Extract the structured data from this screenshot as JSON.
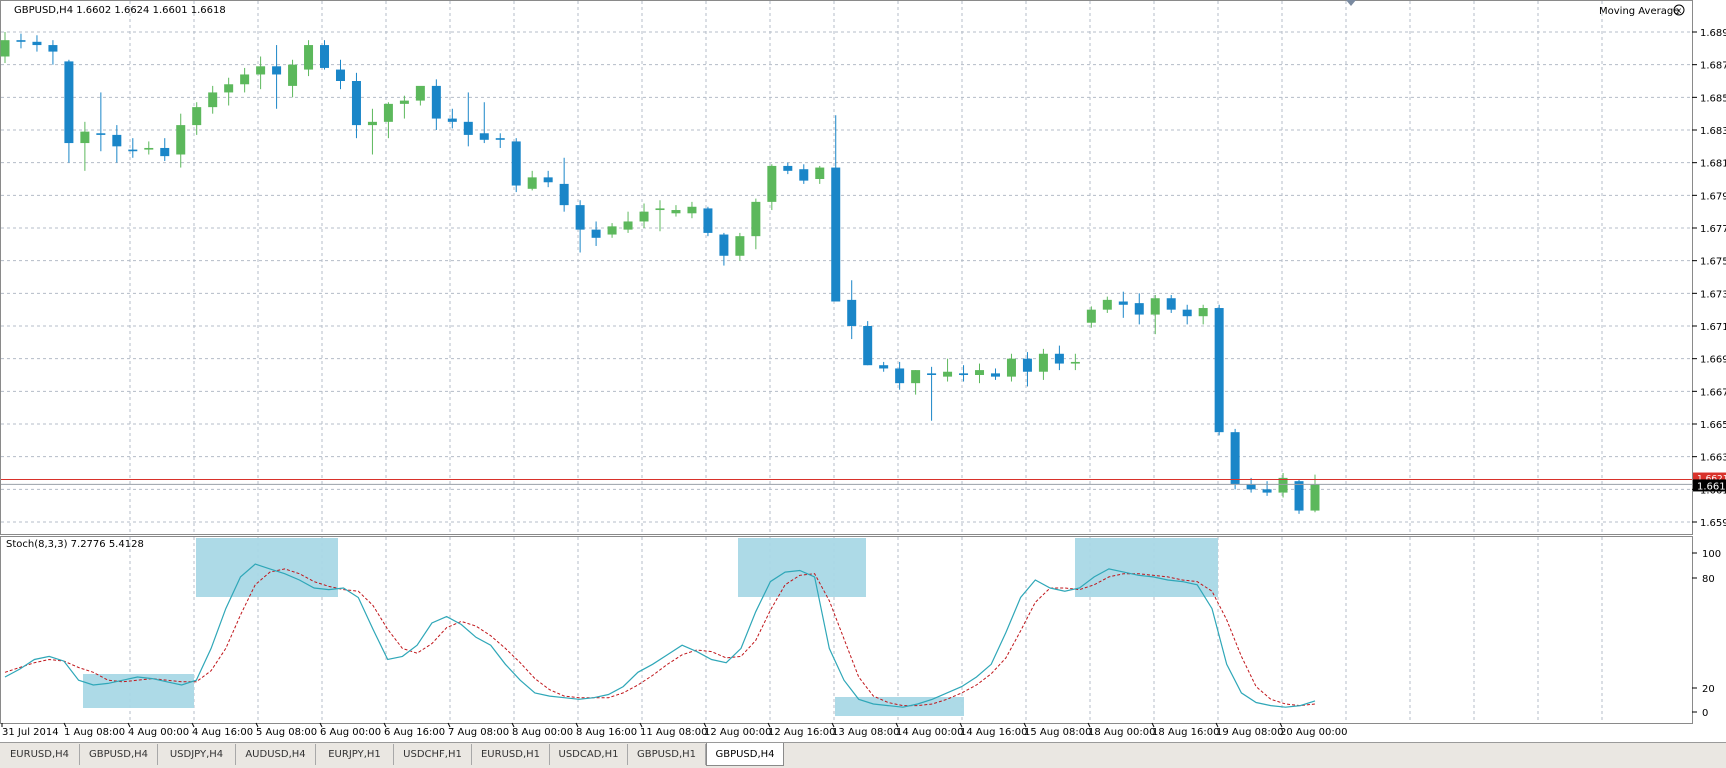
{
  "window": {
    "symbol_header": "GBPUSD,H4  1.6602 1.6624 1.6601 1.6618",
    "indicator_label": "Moving Average",
    "sub_header": "Stoch(8,3,3) 7.2776 5.4128"
  },
  "colors": {
    "bull": "#5cb85c",
    "bear": "#1a86c8",
    "grid": "#b4bcc8",
    "price_line": "#d9322b",
    "stoch_main": "#2fa7b8",
    "stoch_signal": "#c0161b",
    "zone": "#a9d8e6"
  },
  "price_axis": {
    "ticks": [
      "1.6895",
      "1.6875",
      "1.6855",
      "1.6835",
      "1.6815",
      "1.6795",
      "1.6775",
      "1.6755",
      "1.6735",
      "1.6715",
      "1.6695",
      "1.6675",
      "1.6655",
      "1.6635",
      "1.6615",
      "1.6595"
    ],
    "current_label": "1.6618",
    "red_label": "1.6621",
    "red_value": 1.6621,
    "current_value": 1.6618,
    "min": 1.6589,
    "max": 1.6906
  },
  "stoch_axis": {
    "ticks": [
      "100",
      "80",
      "20",
      "0"
    ]
  },
  "time_labels": [
    "31 Jul 2014",
    "1 Aug 08:00",
    "4 Aug 00:00",
    "4 Aug 16:00",
    "5 Aug 08:00",
    "6 Aug 00:00",
    "6 Aug 16:00",
    "7 Aug 08:00",
    "8 Aug 00:00",
    "8 Aug 16:00",
    "11 Aug 08:00",
    "12 Aug 00:00",
    "12 Aug 16:00",
    "13 Aug 08:00",
    "14 Aug 00:00",
    "14 Aug 16:00",
    "15 Aug 08:00",
    "18 Aug 00:00",
    "18 Aug 16:00",
    "19 Aug 08:00",
    "20 Aug 00:00"
  ],
  "tabs": [
    {
      "label": "EURUSD,H4",
      "active": false
    },
    {
      "label": "GBPUSD,H4",
      "active": false
    },
    {
      "label": "USDJPY,H4",
      "active": false
    },
    {
      "label": "AUDUSD,H4",
      "active": false
    },
    {
      "label": "EURJPY,H1",
      "active": false
    },
    {
      "label": "USDCHF,H1",
      "active": false
    },
    {
      "label": "EURUSD,H1",
      "active": false
    },
    {
      "label": "USDCAD,H1",
      "active": false
    },
    {
      "label": "GBPUSD,H1",
      "active": false
    },
    {
      "label": "GBPUSD,H4",
      "active": true
    }
  ],
  "chart_data": {
    "type": "candlestick",
    "candles": [
      {
        "o": 1.688,
        "h": 1.6895,
        "l": 1.6876,
        "c": 1.689
      },
      {
        "o": 1.689,
        "h": 1.6894,
        "l": 1.6885,
        "c": 1.6889
      },
      {
        "o": 1.6889,
        "h": 1.6893,
        "l": 1.6883,
        "c": 1.6887
      },
      {
        "o": 1.6887,
        "h": 1.689,
        "l": 1.6875,
        "c": 1.6883
      },
      {
        "o": 1.6877,
        "h": 1.6878,
        "l": 1.6815,
        "c": 1.6827
      },
      {
        "o": 1.6827,
        "h": 1.684,
        "l": 1.681,
        "c": 1.6834
      },
      {
        "o": 1.6833,
        "h": 1.6858,
        "l": 1.6822,
        "c": 1.6832
      },
      {
        "o": 1.6832,
        "h": 1.6838,
        "l": 1.6815,
        "c": 1.6825
      },
      {
        "o": 1.6823,
        "h": 1.683,
        "l": 1.6818,
        "c": 1.6822
      },
      {
        "o": 1.6823,
        "h": 1.6828,
        "l": 1.682,
        "c": 1.6824
      },
      {
        "o": 1.6824,
        "h": 1.683,
        "l": 1.6816,
        "c": 1.6819
      },
      {
        "o": 1.682,
        "h": 1.6845,
        "l": 1.6812,
        "c": 1.6838
      },
      {
        "o": 1.6838,
        "h": 1.6852,
        "l": 1.6832,
        "c": 1.6849
      },
      {
        "o": 1.6849,
        "h": 1.6862,
        "l": 1.6845,
        "c": 1.6858
      },
      {
        "o": 1.6858,
        "h": 1.6867,
        "l": 1.685,
        "c": 1.6863
      },
      {
        "o": 1.6863,
        "h": 1.6873,
        "l": 1.6858,
        "c": 1.6869
      },
      {
        "o": 1.6869,
        "h": 1.688,
        "l": 1.686,
        "c": 1.6874
      },
      {
        "o": 1.6874,
        "h": 1.6887,
        "l": 1.6848,
        "c": 1.6869
      },
      {
        "o": 1.6862,
        "h": 1.6878,
        "l": 1.6855,
        "c": 1.6875
      },
      {
        "o": 1.6872,
        "h": 1.689,
        "l": 1.6868,
        "c": 1.6887
      },
      {
        "o": 1.6887,
        "h": 1.689,
        "l": 1.6872,
        "c": 1.6873
      },
      {
        "o": 1.6872,
        "h": 1.6878,
        "l": 1.686,
        "c": 1.6865
      },
      {
        "o": 1.6865,
        "h": 1.687,
        "l": 1.683,
        "c": 1.6838
      },
      {
        "o": 1.6838,
        "h": 1.6848,
        "l": 1.682,
        "c": 1.684
      },
      {
        "o": 1.684,
        "h": 1.6852,
        "l": 1.683,
        "c": 1.6851
      },
      {
        "o": 1.6851,
        "h": 1.6856,
        "l": 1.6842,
        "c": 1.6853
      },
      {
        "o": 1.6853,
        "h": 1.686,
        "l": 1.685,
        "c": 1.6862
      },
      {
        "o": 1.6862,
        "h": 1.6866,
        "l": 1.6835,
        "c": 1.6842
      },
      {
        "o": 1.6842,
        "h": 1.6848,
        "l": 1.6836,
        "c": 1.684
      },
      {
        "o": 1.684,
        "h": 1.6858,
        "l": 1.6825,
        "c": 1.6832
      },
      {
        "o": 1.6833,
        "h": 1.6852,
        "l": 1.6827,
        "c": 1.6829
      },
      {
        "o": 1.683,
        "h": 1.6833,
        "l": 1.6824,
        "c": 1.6829
      },
      {
        "o": 1.6828,
        "h": 1.683,
        "l": 1.6797,
        "c": 1.6801
      },
      {
        "o": 1.6799,
        "h": 1.681,
        "l": 1.6798,
        "c": 1.6806
      },
      {
        "o": 1.6806,
        "h": 1.681,
        "l": 1.68,
        "c": 1.6803
      },
      {
        "o": 1.6802,
        "h": 1.6818,
        "l": 1.6785,
        "c": 1.6789
      },
      {
        "o": 1.6789,
        "h": 1.6792,
        "l": 1.676,
        "c": 1.6774
      },
      {
        "o": 1.6774,
        "h": 1.6779,
        "l": 1.6764,
        "c": 1.6769
      },
      {
        "o": 1.6771,
        "h": 1.6778,
        "l": 1.6769,
        "c": 1.6776
      },
      {
        "o": 1.6774,
        "h": 1.6785,
        "l": 1.6772,
        "c": 1.6779
      },
      {
        "o": 1.6779,
        "h": 1.679,
        "l": 1.6775,
        "c": 1.6785
      },
      {
        "o": 1.6786,
        "h": 1.6792,
        "l": 1.6773,
        "c": 1.6787
      },
      {
        "o": 1.6784,
        "h": 1.6789,
        "l": 1.6782,
        "c": 1.6786
      },
      {
        "o": 1.6784,
        "h": 1.6791,
        "l": 1.6781,
        "c": 1.6788
      },
      {
        "o": 1.6787,
        "h": 1.6788,
        "l": 1.677,
        "c": 1.6772
      },
      {
        "o": 1.6771,
        "h": 1.6772,
        "l": 1.6752,
        "c": 1.6758
      },
      {
        "o": 1.6758,
        "h": 1.6772,
        "l": 1.6755,
        "c": 1.677
      },
      {
        "o": 1.677,
        "h": 1.6793,
        "l": 1.6762,
        "c": 1.6791
      },
      {
        "o": 1.6791,
        "h": 1.6814,
        "l": 1.6786,
        "c": 1.6813
      },
      {
        "o": 1.6813,
        "h": 1.6815,
        "l": 1.6808,
        "c": 1.681
      },
      {
        "o": 1.6811,
        "h": 1.6814,
        "l": 1.6802,
        "c": 1.6804
      },
      {
        "o": 1.6805,
        "h": 1.6813,
        "l": 1.6802,
        "c": 1.6812
      },
      {
        "o": 1.6812,
        "h": 1.6844,
        "l": 1.6731,
        "c": 1.673
      },
      {
        "o": 1.6731,
        "h": 1.6743,
        "l": 1.6707,
        "c": 1.6715
      },
      {
        "o": 1.6715,
        "h": 1.6718,
        "l": 1.6691,
        "c": 1.6691
      },
      {
        "o": 1.6691,
        "h": 1.6693,
        "l": 1.6687,
        "c": 1.6689
      },
      {
        "o": 1.6689,
        "h": 1.6693,
        "l": 1.6676,
        "c": 1.668
      },
      {
        "o": 1.668,
        "h": 1.6688,
        "l": 1.6673,
        "c": 1.6688
      },
      {
        "o": 1.6686,
        "h": 1.669,
        "l": 1.6657,
        "c": 1.6685
      },
      {
        "o": 1.6684,
        "h": 1.6695,
        "l": 1.6681,
        "c": 1.6687
      },
      {
        "o": 1.6686,
        "h": 1.6691,
        "l": 1.6681,
        "c": 1.6685
      },
      {
        "o": 1.6685,
        "h": 1.6692,
        "l": 1.668,
        "c": 1.6688
      },
      {
        "o": 1.6686,
        "h": 1.6689,
        "l": 1.6682,
        "c": 1.6684
      },
      {
        "o": 1.6684,
        "h": 1.6698,
        "l": 1.6681,
        "c": 1.6695
      },
      {
        "o": 1.6695,
        "h": 1.6699,
        "l": 1.6678,
        "c": 1.6687
      },
      {
        "o": 1.6687,
        "h": 1.6701,
        "l": 1.6682,
        "c": 1.6698
      },
      {
        "o": 1.6698,
        "h": 1.6703,
        "l": 1.6688,
        "c": 1.6692
      },
      {
        "o": 1.6692,
        "h": 1.6698,
        "l": 1.6688,
        "c": 1.6693
      },
      {
        "o": 1.6717,
        "h": 1.6727,
        "l": 1.6714,
        "c": 1.6725
      },
      {
        "o": 1.6725,
        "h": 1.6733,
        "l": 1.6723,
        "c": 1.6731
      },
      {
        "o": 1.673,
        "h": 1.6736,
        "l": 1.672,
        "c": 1.6728
      },
      {
        "o": 1.6729,
        "h": 1.6735,
        "l": 1.6716,
        "c": 1.6722
      },
      {
        "o": 1.6722,
        "h": 1.6734,
        "l": 1.671,
        "c": 1.6732
      },
      {
        "o": 1.6732,
        "h": 1.6734,
        "l": 1.6723,
        "c": 1.6725
      },
      {
        "o": 1.6725,
        "h": 1.6728,
        "l": 1.6716,
        "c": 1.6721
      },
      {
        "o": 1.6721,
        "h": 1.6728,
        "l": 1.6716,
        "c": 1.6726
      },
      {
        "o": 1.6726,
        "h": 1.6728,
        "l": 1.6648,
        "c": 1.665
      },
      {
        "o": 1.665,
        "h": 1.6652,
        "l": 1.6615,
        "c": 1.6618
      },
      {
        "o": 1.6618,
        "h": 1.6622,
        "l": 1.6613,
        "c": 1.6615
      },
      {
        "o": 1.6615,
        "h": 1.662,
        "l": 1.6611,
        "c": 1.6613
      },
      {
        "o": 1.6613,
        "h": 1.6625,
        "l": 1.661,
        "c": 1.6622
      },
      {
        "o": 1.662,
        "h": 1.6621,
        "l": 1.66,
        "c": 1.6602
      },
      {
        "o": 1.6602,
        "h": 1.6624,
        "l": 1.6601,
        "c": 1.6618
      }
    ],
    "stoch_main": [
      22,
      27,
      33,
      35,
      32,
      20,
      17,
      18,
      20,
      22,
      21,
      19,
      17,
      20,
      40,
      65,
      85,
      93,
      90,
      87,
      83,
      78,
      77,
      78,
      72,
      52,
      33,
      35,
      42,
      56,
      60,
      55,
      47,
      42,
      30,
      20,
      12,
      10,
      9,
      8,
      9,
      11,
      16,
      25,
      30,
      36,
      42,
      38,
      33,
      31,
      40,
      63,
      82,
      88,
      89,
      85,
      40,
      20,
      8,
      5,
      4,
      3,
      5,
      8,
      12,
      16,
      22,
      30,
      50,
      72,
      83,
      78,
      76,
      78,
      85,
      90,
      88,
      86,
      85,
      83,
      82,
      80,
      65,
      30,
      12,
      6,
      4,
      3,
      4,
      7
    ],
    "stoch_signal": [
      25,
      28,
      31,
      33,
      32,
      28,
      25,
      20,
      19,
      20,
      21,
      20,
      19,
      19,
      26,
      40,
      61,
      80,
      88,
      90,
      87,
      82,
      79,
      77,
      76,
      67,
      52,
      40,
      37,
      43,
      53,
      57,
      54,
      48,
      40,
      31,
      21,
      14,
      10,
      9,
      9,
      9,
      12,
      17,
      23,
      30,
      36,
      39,
      38,
      34,
      35,
      45,
      64,
      80,
      86,
      87,
      70,
      46,
      22,
      10,
      6,
      4,
      4,
      5,
      8,
      12,
      17,
      24,
      34,
      51,
      69,
      78,
      78,
      77,
      80,
      85,
      87,
      87,
      86,
      85,
      83,
      82,
      76,
      58,
      35,
      16,
      8,
      5,
      4,
      5
    ]
  }
}
